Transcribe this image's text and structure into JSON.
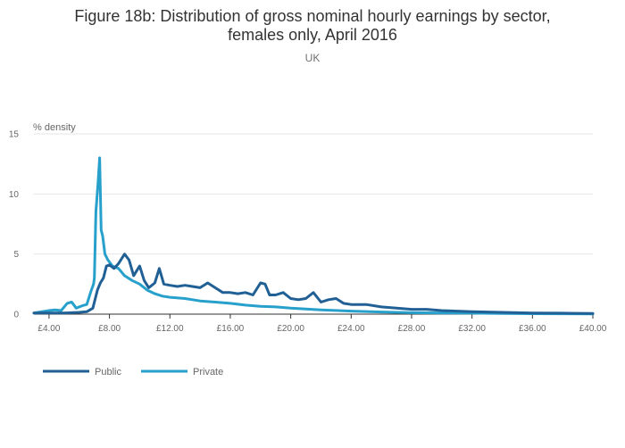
{
  "chart_data": {
    "type": "line",
    "title_line1": "Figure 18b: Distribution of gross nominal hourly earnings by sector,",
    "title_line2": "females only, April 2016",
    "subtitle": "UK",
    "ylabel": "% density",
    "xlabel": "",
    "xlim": [
      3,
      40
    ],
    "ylim": [
      0,
      15
    ],
    "x_ticks": [
      4,
      8,
      12,
      16,
      20,
      24,
      28,
      32,
      36,
      40
    ],
    "x_tick_labels": [
      "£4.00",
      "£8.00",
      "£12.00",
      "£16.00",
      "£20.00",
      "£24.00",
      "£28.00",
      "£32.00",
      "£36.00",
      "£40.00"
    ],
    "y_ticks": [
      0,
      5,
      10,
      15
    ],
    "y_tick_labels": [
      "0",
      "5",
      "10",
      "15"
    ],
    "grid": true,
    "legend_position": "bottom-left",
    "series": [
      {
        "name": "Public",
        "color": "#206095",
        "x": [
          3.0,
          4.0,
          5.0,
          6.0,
          6.5,
          6.9,
          7.2,
          7.4,
          7.6,
          7.8,
          8.0,
          8.3,
          8.6,
          9.0,
          9.3,
          9.6,
          10.0,
          10.3,
          10.6,
          11.0,
          11.3,
          11.6,
          12.0,
          12.5,
          13.0,
          13.5,
          14.0,
          14.5,
          15.0,
          15.5,
          16.0,
          16.5,
          17.0,
          17.5,
          18.0,
          18.3,
          18.6,
          19.0,
          19.5,
          20.0,
          20.5,
          21.0,
          21.5,
          22.0,
          22.5,
          23.0,
          23.5,
          24.0,
          25.0,
          26.0,
          27.0,
          28.0,
          29.0,
          30.0,
          31.0,
          32.0,
          34.0,
          36.0,
          38.0,
          40.0
        ],
        "y": [
          0.1,
          0.1,
          0.1,
          0.15,
          0.2,
          0.5,
          2.0,
          2.6,
          3.0,
          4.0,
          4.1,
          3.8,
          4.2,
          5.0,
          4.5,
          3.2,
          4.0,
          2.8,
          2.2,
          2.6,
          3.8,
          2.5,
          2.4,
          2.3,
          2.4,
          2.3,
          2.2,
          2.6,
          2.2,
          1.8,
          1.8,
          1.7,
          1.8,
          1.6,
          2.6,
          2.5,
          1.6,
          1.6,
          1.8,
          1.3,
          1.2,
          1.3,
          1.8,
          1.0,
          1.2,
          1.3,
          0.9,
          0.8,
          0.8,
          0.6,
          0.5,
          0.4,
          0.4,
          0.3,
          0.25,
          0.2,
          0.15,
          0.1,
          0.08,
          0.05
        ]
      },
      {
        "name": "Private",
        "color": "#27a0cc",
        "x": [
          3.0,
          3.5,
          4.0,
          4.4,
          4.8,
          5.2,
          5.5,
          5.8,
          6.0,
          6.2,
          6.5,
          6.8,
          6.95,
          7.0,
          7.1,
          7.25,
          7.35,
          7.45,
          7.55,
          7.7,
          7.9,
          8.2,
          8.6,
          9.0,
          9.5,
          10.0,
          10.5,
          11.0,
          11.5,
          12.0,
          13.0,
          14.0,
          15.0,
          16.0,
          17.0,
          18.0,
          19.0,
          20.0,
          22.0,
          24.0,
          26.0,
          28.0,
          30.0,
          32.0,
          34.0,
          36.0,
          38.0,
          40.0
        ],
        "y": [
          0.1,
          0.2,
          0.3,
          0.35,
          0.3,
          0.9,
          1.0,
          0.5,
          0.6,
          0.7,
          0.8,
          2.0,
          2.5,
          3.0,
          8.5,
          11.0,
          13.0,
          7.0,
          6.5,
          5.0,
          4.5,
          4.0,
          3.8,
          3.2,
          2.8,
          2.5,
          2.0,
          1.7,
          1.5,
          1.4,
          1.3,
          1.1,
          1.0,
          0.9,
          0.75,
          0.65,
          0.6,
          0.5,
          0.35,
          0.25,
          0.18,
          0.12,
          0.1,
          0.08,
          0.05,
          0.04,
          0.03,
          0.02
        ]
      }
    ]
  }
}
